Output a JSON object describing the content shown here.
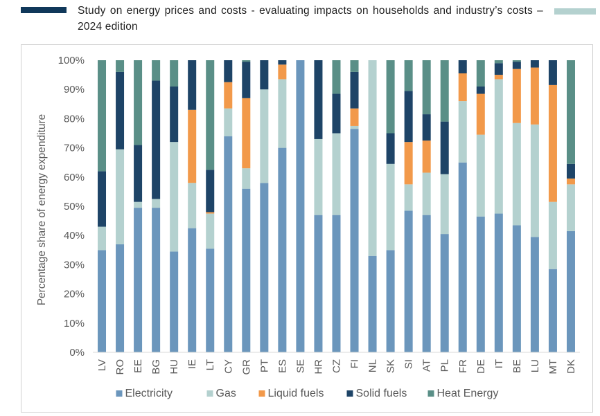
{
  "header": {
    "title": "Study on energy prices and costs - evaluating impacts on households and industry’s costs – 2024 edition"
  },
  "chart_data": {
    "type": "bar",
    "stacked": true,
    "ylabel": "Percentage share of energy expenditure",
    "ylim": [
      0,
      100
    ],
    "yticks": [
      "0%",
      "10%",
      "20%",
      "30%",
      "40%",
      "50%",
      "60%",
      "70%",
      "80%",
      "90%",
      "100%"
    ],
    "categories": [
      "LV",
      "RO",
      "EE",
      "BG",
      "HU",
      "IE",
      "LT",
      "CY",
      "GR",
      "PT",
      "ES",
      "SE",
      "HR",
      "CZ",
      "FI",
      "NL",
      "SK",
      "SI",
      "AT",
      "PL",
      "FR",
      "DE",
      "IT",
      "BE",
      "LU",
      "MT",
      "DK"
    ],
    "series": [
      {
        "name": "Electricity",
        "color": "#6b96bc",
        "values": [
          35,
          37,
          49.5,
          49.5,
          34.5,
          42.5,
          35.5,
          74,
          56,
          58,
          70,
          100,
          47,
          47,
          76.5,
          33,
          35,
          48.5,
          47,
          40.5,
          65,
          46.5,
          47.5,
          43.5,
          39.5,
          28.5,
          41.5
        ]
      },
      {
        "name": "Gas",
        "color": "#b4d1cf",
        "values": [
          8,
          32.5,
          2,
          3,
          37.5,
          15.5,
          12,
          9.5,
          7,
          32,
          23.5,
          0,
          26,
          28,
          1,
          67,
          29.5,
          9,
          14.5,
          20.5,
          21,
          28,
          46,
          35,
          38.5,
          23,
          16
        ]
      },
      {
        "name": "Liquid fuels",
        "color": "#f2994a",
        "values": [
          0,
          0,
          0,
          0,
          0,
          25,
          0.5,
          9,
          24,
          0,
          5,
          0,
          0,
          0,
          6,
          0,
          0,
          14.5,
          11,
          0,
          9.5,
          14,
          1.5,
          18.5,
          19.5,
          40,
          2
        ]
      },
      {
        "name": "Solid fuels",
        "color": "#1e4467",
        "values": [
          19,
          26.5,
          19.5,
          40.5,
          19,
          17,
          14.5,
          7.5,
          12.5,
          10,
          1.5,
          0,
          27,
          13.5,
          12.5,
          0,
          10.5,
          17.5,
          9,
          18,
          4.5,
          2.5,
          4,
          2.5,
          2.5,
          8.5,
          5
        ]
      },
      {
        "name": "Heat Energy",
        "color": "#5a8f87",
        "values": [
          38,
          4,
          29,
          7,
          9,
          0,
          37.5,
          0,
          0.5,
          0,
          0,
          0,
          0,
          11.5,
          4,
          0,
          25,
          10.5,
          18.5,
          21,
          0,
          9,
          1,
          0.5,
          0,
          0,
          35.5
        ]
      }
    ],
    "legend_position": "bottom",
    "grid": false
  }
}
